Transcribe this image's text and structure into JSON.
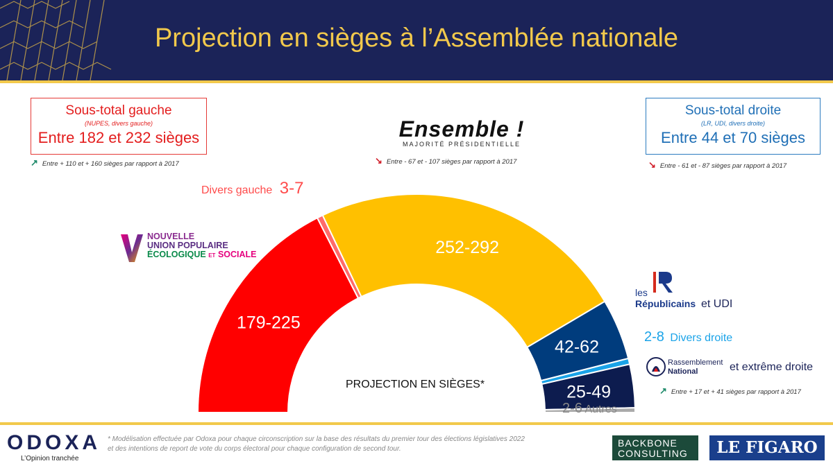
{
  "title": "Projection en sièges à l’Assemblée nationale",
  "left_box": {
    "title": "Sous-total gauche",
    "subtitle": "(NUPES, divers gauche)",
    "value": "Entre 182 et 232 sièges",
    "delta": "Entre + 110 et + 160 sièges par rapport à 2017"
  },
  "right_box": {
    "title": "Sous-total droite",
    "subtitle": "(LR, UDI, divers droite)",
    "value": "Entre 44 et 70 sièges",
    "delta": "Entre - 61 et - 87 sièges par rapport à 2017"
  },
  "ensemble": {
    "logo": "Ensemble !",
    "subtitle": "MAJORITÉ PRÉSIDENTIELLE",
    "delta": "Entre - 67 et - 107 sièges par rapport à 2017"
  },
  "nupes_logo": {
    "l1": "NOUVELLE",
    "l2": "UNION POPULAIRE",
    "l3a": "ÉCOLOGIQUE",
    "l3b": "ET",
    "l3c": "SOCIALE"
  },
  "lr_logo": {
    "les": "les",
    "name": "Républicains",
    "suffix": "et UDI"
  },
  "rn_logo": {
    "name1": "Rassemblement",
    "name2": "National",
    "suffix": "et extrême droite",
    "delta": "Entre + 17 et + 41 sièges par rapport à 2017"
  },
  "center_label": "PROJECTION EN SIÈGES*",
  "footnote": "* Modélisation effectuée par Odoxa pour chaque circonscription sur la base des résultats du premier tour des élections législatives 2022 et des intentions de report de vote du corps électoral pour chaque configuration de second tour.",
  "odoxa": {
    "logo": "ODOXA",
    "tagline": "L’Opinion tranchée"
  },
  "backbone": {
    "l1": "BACKBONE",
    "l2": "CONSULTING"
  },
  "figaro": "LE FIGARO",
  "colors": {
    "nupes": "#ff0000",
    "divers_gauche": "#ff6b6b",
    "ensemble": "#ffc000",
    "lr": "#003c7d",
    "divers_droite": "#1aa3e8",
    "rn": "#0d1c4f",
    "autres": "#aaaaaa",
    "header": "#1b2358",
    "gold": "#f2c94c"
  },
  "chart_data": {
    "type": "parliament-semicircle",
    "total_seats": 577,
    "segments": [
      {
        "name": "NUPES",
        "range": "179-225",
        "seats": 202,
        "color": "#ff0000"
      },
      {
        "name": "Divers gauche",
        "range": "3-7",
        "seats": 5,
        "color": "#ff6b6b"
      },
      {
        "name": "Ensemble",
        "range": "252-292",
        "seats": 272,
        "color": "#ffc000"
      },
      {
        "name": "LR et UDI",
        "range": "42-62",
        "seats": 52,
        "color": "#003c7d"
      },
      {
        "name": "Divers droite",
        "range": "2-8",
        "seats": 5,
        "color": "#1aa3e8"
      },
      {
        "name": "RN et extrême droite",
        "range": "25-49",
        "seats": 37,
        "color": "#0d1c4f"
      },
      {
        "name": "Autres",
        "range": "2-6",
        "seats": 4,
        "color": "#aaaaaa"
      }
    ],
    "labels": {
      "divers_gauche": {
        "prefix": "Divers gauche",
        "value": "3-7"
      },
      "divers_droite": {
        "value": "2-8",
        "suffix": "Divers droite"
      },
      "autres": {
        "value": "2-6",
        "suffix": "Autres"
      }
    }
  }
}
